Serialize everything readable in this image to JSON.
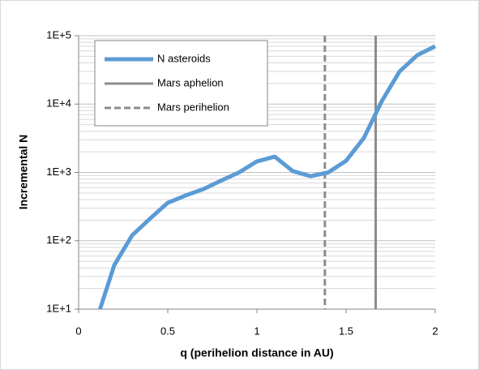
{
  "chart_data": {
    "type": "line",
    "x_label": "q (perihelion distance in AU)",
    "y_label": "Incremental N",
    "log_y": true,
    "grid": true,
    "minor_grid": true,
    "legend": "upper left",
    "xlim": [
      0,
      2
    ],
    "xticks": [
      0,
      0.5,
      1,
      1.5,
      2
    ],
    "ylim": [
      10,
      100000
    ],
    "yticks": [
      {
        "value": 10,
        "label": "1E+1"
      },
      {
        "value": 100,
        "label": "1E+2"
      },
      {
        "value": 1000,
        "label": "1E+3"
      },
      {
        "value": 10000,
        "label": "1E+4"
      },
      {
        "value": 100000,
        "label": "1E+5"
      }
    ],
    "x": [
      0.12,
      0.2,
      0.3,
      0.4,
      0.5,
      0.6,
      0.7,
      0.8,
      0.9,
      1.0,
      1.1,
      1.2,
      1.3,
      1.4,
      1.5,
      1.6,
      1.7,
      1.8,
      1.9,
      2.0
    ],
    "series": [
      {
        "name": "N asteroids",
        "color": "#5b9bd5",
        "values": [
          10,
          44,
          120,
          210,
          360,
          460,
          570,
          760,
          1000,
          1450,
          1700,
          1050,
          880,
          1000,
          1480,
          3200,
          11000,
          30000,
          52000,
          70000
        ]
      }
    ],
    "reference_lines": [
      {
        "name": "Mars aphelion",
        "x": 1.666,
        "color": "#8c8c8c",
        "dashed": false
      },
      {
        "name": "Mars perihelion",
        "x": 1.381,
        "color": "#8c8c8c",
        "dashed": true
      }
    ]
  }
}
